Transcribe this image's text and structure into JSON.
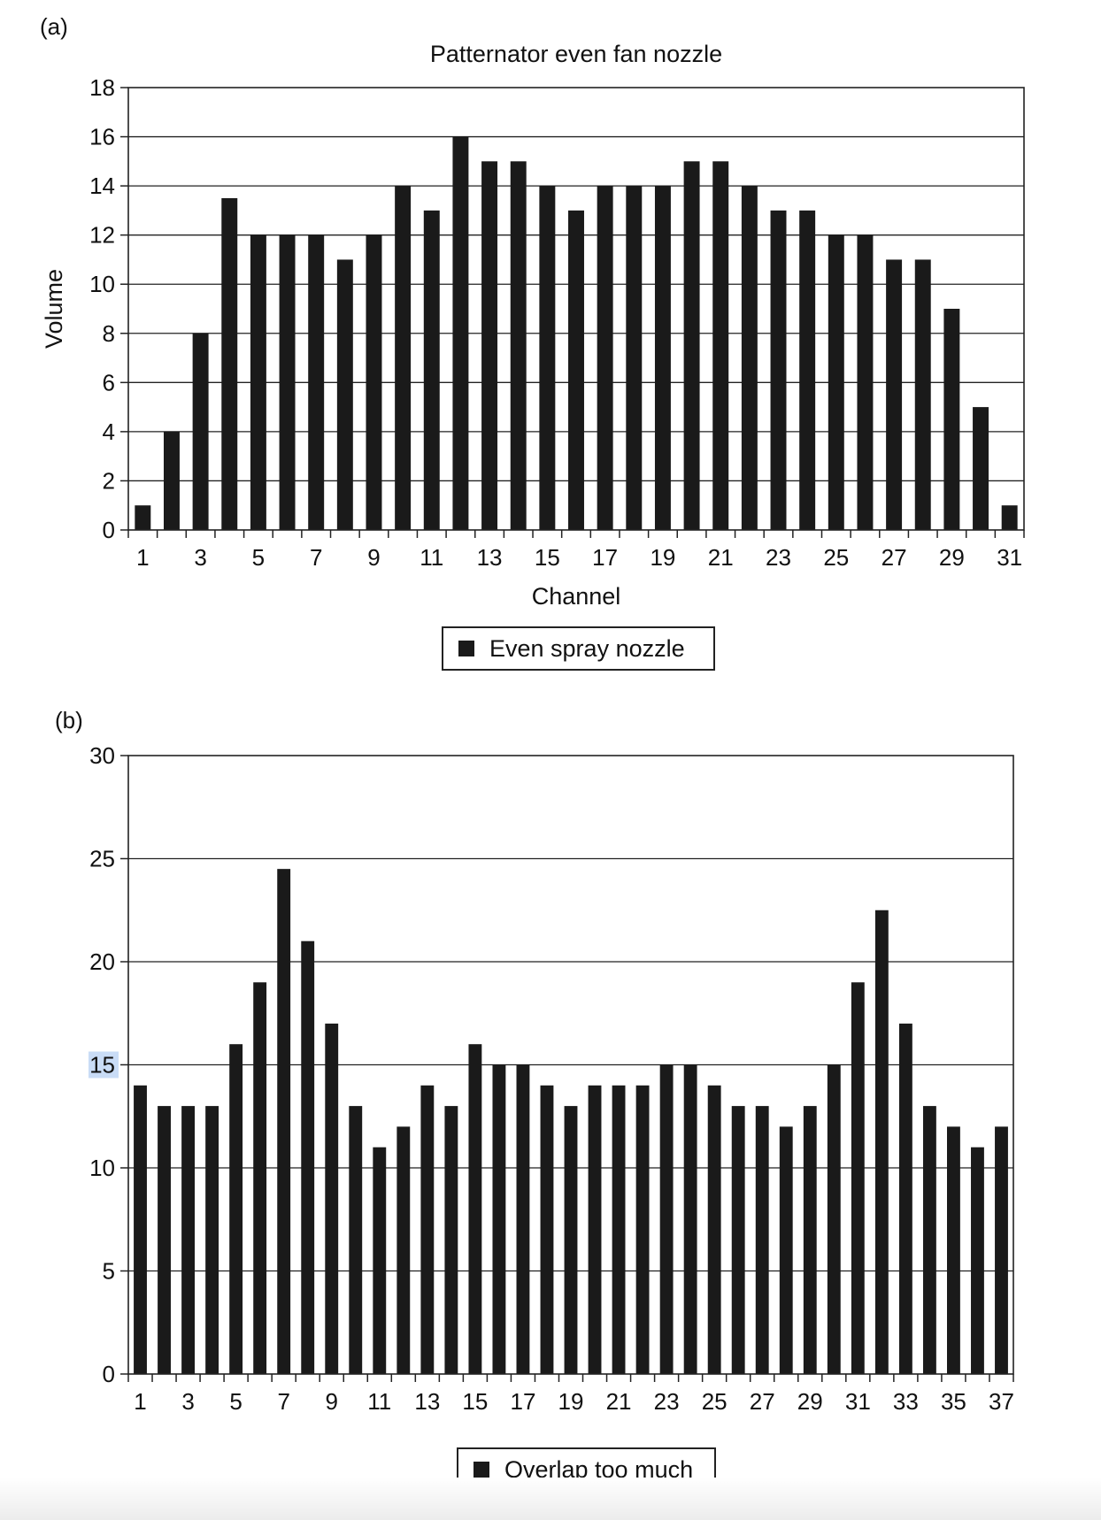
{
  "page": {
    "background": "#ffffff",
    "bar_color": "#1a1a1a",
    "highlight_color": "#c9dcf6"
  },
  "chart_data": [
    {
      "panel_label": "(a)",
      "type": "bar",
      "title": "Patternator even fan nozzle",
      "xlabel": "Channel",
      "ylabel": "Volume",
      "ylim": [
        0,
        18
      ],
      "yticks": [
        0,
        2,
        4,
        6,
        8,
        10,
        12,
        14,
        16,
        18
      ],
      "grid": true,
      "legend_placement": "bottom-center",
      "categories": [
        "1",
        "2",
        "3",
        "4",
        "5",
        "6",
        "7",
        "8",
        "9",
        "10",
        "11",
        "12",
        "13",
        "14",
        "15",
        "16",
        "17",
        "18",
        "19",
        "20",
        "21",
        "22",
        "23",
        "24",
        "25",
        "26",
        "27",
        "28",
        "29",
        "30",
        "31"
      ],
      "x_tick_labels": [
        "1",
        "",
        "3",
        "",
        "5",
        "",
        "7",
        "",
        "9",
        "",
        "11",
        "",
        "13",
        "",
        "15",
        "",
        "17",
        "",
        "19",
        "",
        "21",
        "",
        "23",
        "",
        "25",
        "",
        "27",
        "",
        "29",
        "",
        "31"
      ],
      "series": [
        {
          "name": "Even spray nozzle",
          "values": [
            1,
            4,
            8,
            13.5,
            12,
            12,
            12,
            11,
            12,
            14,
            13,
            16,
            15,
            15,
            14,
            13,
            14,
            14,
            14,
            15,
            15,
            14,
            13,
            13,
            12,
            12,
            11,
            11,
            9,
            5,
            1
          ]
        }
      ]
    },
    {
      "panel_label": "(b)",
      "type": "bar",
      "title": "",
      "xlabel": "",
      "ylabel": "",
      "ylim": [
        0,
        30
      ],
      "yticks": [
        0,
        5,
        10,
        15,
        20,
        25,
        30
      ],
      "highlighted_ytick": 15,
      "grid": true,
      "legend_placement": "bottom-center",
      "categories": [
        "1",
        "2",
        "3",
        "4",
        "5",
        "6",
        "7",
        "8",
        "9",
        "10",
        "11",
        "12",
        "13",
        "14",
        "15",
        "16",
        "17",
        "18",
        "19",
        "20",
        "21",
        "22",
        "23",
        "24",
        "25",
        "26",
        "27",
        "28",
        "29",
        "30",
        "31",
        "32",
        "33",
        "34",
        "35",
        "36",
        "37"
      ],
      "x_tick_labels": [
        "1",
        "",
        "3",
        "",
        "5",
        "",
        "7",
        "",
        "9",
        "",
        "11",
        "",
        "13",
        "",
        "15",
        "",
        "17",
        "",
        "19",
        "",
        "21",
        "",
        "23",
        "",
        "25",
        "",
        "27",
        "",
        "29",
        "",
        "31",
        "",
        "33",
        "",
        "35",
        "",
        "37"
      ],
      "series": [
        {
          "name": "Overlap too much",
          "values": [
            14,
            13,
            13,
            13,
            16,
            19,
            24.5,
            21,
            17,
            13,
            11,
            12,
            14,
            13,
            16,
            15,
            15,
            14,
            13,
            14,
            14,
            14,
            15,
            15,
            14,
            13,
            13,
            12,
            13,
            15,
            19,
            22.5,
            17,
            13,
            12,
            11,
            12
          ]
        }
      ]
    }
  ]
}
